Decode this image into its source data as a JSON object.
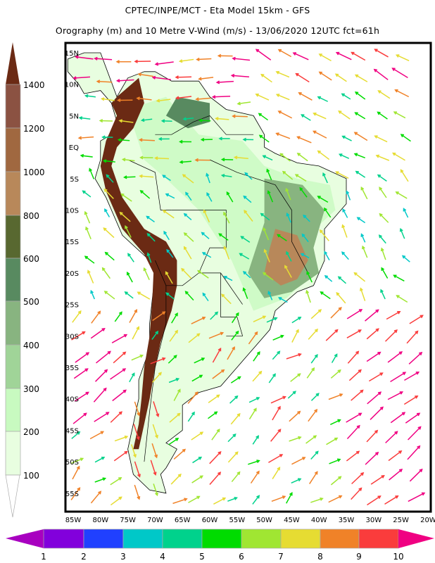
{
  "header": {
    "title": "CPTEC/INPE/MCT -  Eta Model 15km - GFS",
    "subtitle": "Orography (m) and 10 Metre V-Wind (m/s) - 13/06/2020 12UTC fct=61h"
  },
  "map": {
    "lat_labels": [
      "15N",
      "10N",
      "5N",
      "EQ",
      "5S",
      "10S",
      "15S",
      "20S",
      "25S",
      "30S",
      "35S",
      "40S",
      "45S",
      "50S",
      "55S"
    ],
    "lon_labels": [
      "85W",
      "80W",
      "75W",
      "70W",
      "65W",
      "60W",
      "55W",
      "50W",
      "45W",
      "40W",
      "35W",
      "30W",
      "25W",
      "20W"
    ],
    "ocean_color": "#ffffff",
    "border_color": "#000000"
  },
  "orography_colorbar": {
    "labels": [
      "1400",
      "1200",
      "1000",
      "800",
      "600",
      "500",
      "400",
      "300",
      "200",
      "100"
    ],
    "top_arrow_color": "#6b2a14",
    "colors": [
      "#8b5242",
      "#a06840",
      "#b8885a",
      "#586830",
      "#588a60",
      "#88b480",
      "#a0d498",
      "#c8fac0",
      "#e8fee0"
    ],
    "bottom_arrow_color": "#ffffff"
  },
  "wind_colorbar": {
    "labels": [
      "1",
      "2",
      "3",
      "4",
      "5",
      "6",
      "7",
      "8",
      "9",
      "10"
    ],
    "left_arrow_color": "#a800c0",
    "colors": [
      "#8200dc",
      "#2040ff",
      "#00c8c8",
      "#00d28c",
      "#00dc00",
      "#a0e632",
      "#e6dc32",
      "#f08228",
      "#fa3c3c"
    ],
    "right_arrow_color": "#f00082"
  }
}
